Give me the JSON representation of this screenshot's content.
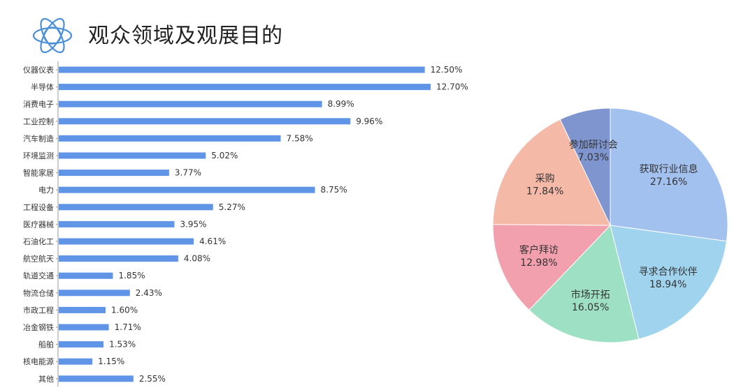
{
  "page": {
    "title": "观众领域及观展目的"
  },
  "colors": {
    "bar": "#5f94e6",
    "logo": "#4a90d9"
  },
  "chart_data": [
    {
      "type": "bar",
      "orientation": "horizontal",
      "categories": [
        "仪器仪表",
        "半导体",
        "消费电子",
        "工业控制",
        "汽车制造",
        "环境监测",
        "智能家居",
        "电力",
        "工程设备",
        "医疗器械",
        "石油化工",
        "航空航天",
        "轨道交通",
        "物流仓储",
        "市政工程",
        "冶金钢铁",
        "船舶",
        "核电能源",
        "其他"
      ],
      "values": [
        12.5,
        12.7,
        8.99,
        9.96,
        7.58,
        5.02,
        3.77,
        8.75,
        5.27,
        3.95,
        4.61,
        4.08,
        1.85,
        2.43,
        1.6,
        1.71,
        1.53,
        1.15,
        2.55
      ],
      "value_labels": [
        "12.50%",
        "12.70%",
        "8.99%",
        "9.96%",
        "7.58%",
        "5.02%",
        "3.77%",
        "8.75%",
        "5.27%",
        "3.95%",
        "4.61%",
        "4.08%",
        "1.85%",
        "2.43%",
        "1.60%",
        "1.71%",
        "1.53%",
        "1.15%",
        "2.55%"
      ],
      "unit": "%",
      "xlim": [
        0,
        12.7
      ],
      "grid": false
    },
    {
      "type": "pie",
      "slices": [
        {
          "label": "获取行业信息",
          "value": 27.16,
          "value_label": "27.16%",
          "color": "#a3c1ef"
        },
        {
          "label": "寻求合作伙伴",
          "value": 18.94,
          "value_label": "18.94%",
          "color": "#9fd3ee"
        },
        {
          "label": "市场开拓",
          "value": 16.05,
          "value_label": "16.05%",
          "color": "#9ee0c3"
        },
        {
          "label": "客户拜访",
          "value": 12.98,
          "value_label": "12.98%",
          "color": "#f2a0ad"
        },
        {
          "label": "采购",
          "value": 17.84,
          "value_label": "17.84%",
          "color": "#f5b9a8"
        },
        {
          "label": "参加研讨会",
          "value": 7.03,
          "value_label": "7.03%",
          "color": "#7f95cf"
        }
      ],
      "start": "12 o'clock",
      "direction": "clockwise"
    }
  ]
}
